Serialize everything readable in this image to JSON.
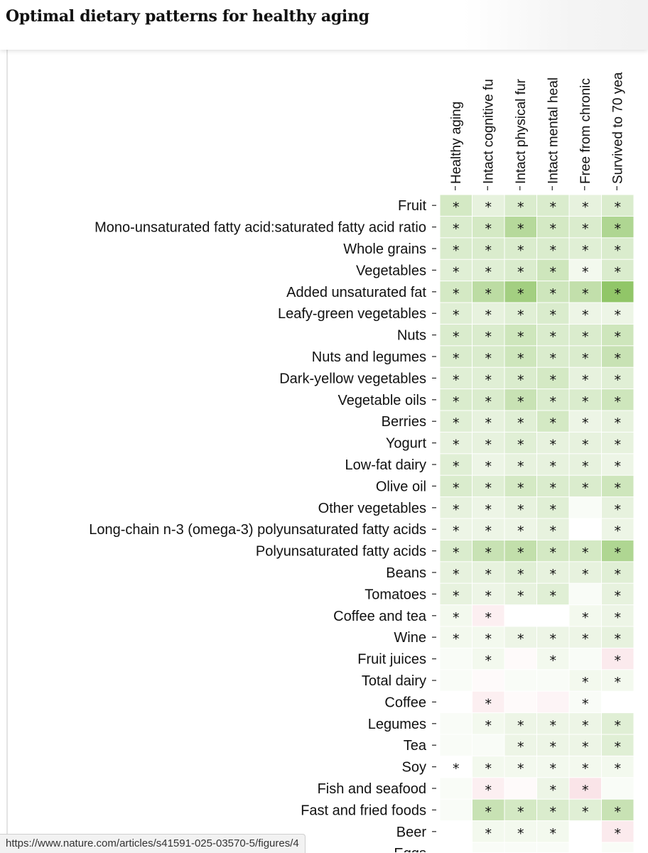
{
  "page": {
    "title": "Optimal dietary patterns for healthy aging",
    "status_url": "https://www.nature.com/articles/s41591-025-03570-5/figures/4"
  },
  "colors": {
    "positive": "#6fb43a",
    "negative": "#e8899a",
    "neutral": "#ffffff",
    "star": "#111111"
  },
  "chart_data": {
    "type": "heatmap",
    "title": "Optimal dietary patterns for healthy aging",
    "columns": [
      "Healthy aging",
      "Intact cognitive fu",
      "Intact physical fur",
      "Intact mental heal",
      "Free from chronic",
      "Survived to 70 yea"
    ],
    "note": "values are approximate association strengths (positive = green, negative = pink); null = not rendered",
    "rows": [
      {
        "label": "Fruit",
        "values": [
          0.35,
          0.2,
          0.3,
          0.3,
          0.2,
          0.3
        ],
        "stars": [
          1,
          1,
          1,
          1,
          1,
          1
        ]
      },
      {
        "label": "Mono-unsaturated fatty acid:saturated fatty acid ratio",
        "values": [
          0.3,
          0.35,
          0.6,
          0.35,
          0.3,
          0.65
        ],
        "stars": [
          1,
          1,
          1,
          1,
          1,
          1
        ]
      },
      {
        "label": "Whole grains",
        "values": [
          0.3,
          0.3,
          0.3,
          0.3,
          0.25,
          0.3
        ],
        "stars": [
          1,
          1,
          1,
          1,
          1,
          1
        ]
      },
      {
        "label": "Vegetables",
        "values": [
          0.25,
          0.25,
          0.3,
          0.4,
          0.1,
          0.3
        ],
        "stars": [
          1,
          1,
          1,
          1,
          1,
          1
        ]
      },
      {
        "label": "Added unsaturated fat",
        "values": [
          0.35,
          0.55,
          0.75,
          0.4,
          0.5,
          0.9
        ],
        "stars": [
          1,
          1,
          1,
          1,
          1,
          1
        ]
      },
      {
        "label": "Leafy-green vegetables",
        "values": [
          0.25,
          0.2,
          0.25,
          0.3,
          0.15,
          0.15
        ],
        "stars": [
          1,
          1,
          1,
          1,
          1,
          1
        ]
      },
      {
        "label": "Nuts",
        "values": [
          0.3,
          0.3,
          0.4,
          0.3,
          0.3,
          0.4
        ],
        "stars": [
          1,
          1,
          1,
          1,
          1,
          1
        ]
      },
      {
        "label": "Nuts and legumes",
        "values": [
          0.3,
          0.3,
          0.4,
          0.3,
          0.3,
          0.45
        ],
        "stars": [
          1,
          1,
          1,
          1,
          1,
          1
        ]
      },
      {
        "label": "Dark-yellow vegetables",
        "values": [
          0.25,
          0.25,
          0.3,
          0.35,
          0.2,
          0.25
        ],
        "stars": [
          1,
          1,
          1,
          1,
          1,
          1
        ]
      },
      {
        "label": "Vegetable oils",
        "values": [
          0.3,
          0.3,
          0.45,
          0.3,
          0.3,
          0.4
        ],
        "stars": [
          1,
          1,
          1,
          1,
          1,
          1
        ]
      },
      {
        "label": "Berries",
        "values": [
          0.25,
          0.2,
          0.25,
          0.35,
          0.15,
          0.2
        ],
        "stars": [
          1,
          1,
          1,
          1,
          1,
          1
        ]
      },
      {
        "label": "Yogurt",
        "values": [
          0.2,
          0.2,
          0.25,
          0.2,
          0.2,
          0.2
        ],
        "stars": [
          1,
          1,
          1,
          1,
          1,
          1
        ]
      },
      {
        "label": "Low-fat dairy",
        "values": [
          0.25,
          0.15,
          0.2,
          0.2,
          0.2,
          0.15
        ],
        "stars": [
          1,
          1,
          1,
          1,
          1,
          1
        ]
      },
      {
        "label": "Olive oil",
        "values": [
          0.3,
          0.25,
          0.35,
          0.3,
          0.3,
          0.4
        ],
        "stars": [
          1,
          1,
          1,
          1,
          1,
          1
        ]
      },
      {
        "label": "Other vegetables",
        "values": [
          0.2,
          0.15,
          0.2,
          0.25,
          0.05,
          0.2
        ],
        "stars": [
          1,
          1,
          1,
          1,
          0,
          1
        ]
      },
      {
        "label": "Long-chain n-3 (omega-3) polyunsaturated fatty acids",
        "values": [
          0.15,
          0.15,
          0.15,
          0.2,
          0.0,
          0.15
        ],
        "stars": [
          1,
          1,
          1,
          1,
          0,
          1
        ]
      },
      {
        "label": "Polyunsaturated fatty acids",
        "values": [
          0.3,
          0.45,
          0.5,
          0.35,
          0.35,
          0.65
        ],
        "stars": [
          1,
          1,
          1,
          1,
          1,
          1
        ]
      },
      {
        "label": "Beans",
        "values": [
          0.2,
          0.2,
          0.25,
          0.2,
          0.2,
          0.25
        ],
        "stars": [
          1,
          1,
          1,
          1,
          1,
          1
        ]
      },
      {
        "label": "Tomatoes",
        "values": [
          0.2,
          0.15,
          0.2,
          0.25,
          0.05,
          0.2
        ],
        "stars": [
          1,
          1,
          1,
          1,
          0,
          1
        ]
      },
      {
        "label": "Coffee and tea",
        "values": [
          0.1,
          -0.15,
          0.0,
          0.0,
          0.1,
          0.15
        ],
        "stars": [
          1,
          1,
          0,
          0,
          1,
          1
        ]
      },
      {
        "label": "Wine",
        "values": [
          0.1,
          0.1,
          0.15,
          0.15,
          0.15,
          0.2
        ],
        "stars": [
          1,
          1,
          1,
          1,
          1,
          1
        ]
      },
      {
        "label": "Fruit juices",
        "values": [
          0.05,
          0.1,
          -0.05,
          0.1,
          0.05,
          -0.2
        ],
        "stars": [
          0,
          1,
          0,
          1,
          0,
          1
        ]
      },
      {
        "label": "Total dairy",
        "values": [
          0.05,
          -0.05,
          0.05,
          0.05,
          0.1,
          0.1
        ],
        "stars": [
          0,
          0,
          0,
          0,
          1,
          1
        ]
      },
      {
        "label": "Coffee",
        "values": [
          0.0,
          -0.15,
          -0.05,
          -0.1,
          0.05,
          0.0
        ],
        "stars": [
          0,
          1,
          0,
          0,
          1,
          0
        ]
      },
      {
        "label": "Legumes",
        "values": [
          0.05,
          0.1,
          0.15,
          0.15,
          0.15,
          0.25
        ],
        "stars": [
          0,
          1,
          1,
          1,
          1,
          1
        ]
      },
      {
        "label": "Tea",
        "values": [
          0.05,
          0.05,
          0.15,
          0.15,
          0.15,
          0.25
        ],
        "stars": [
          0,
          0,
          1,
          1,
          1,
          1
        ]
      },
      {
        "label": "Soy",
        "values": [
          0.0,
          0.1,
          0.1,
          0.1,
          0.1,
          0.1
        ],
        "stars": [
          1,
          1,
          1,
          1,
          1,
          1
        ]
      },
      {
        "label": "Fish and seafood",
        "values": [
          0.05,
          -0.15,
          -0.05,
          0.15,
          -0.25,
          0.05
        ],
        "stars": [
          0,
          1,
          0,
          1,
          1,
          0
        ]
      },
      {
        "label": "Fast and fried foods",
        "values": [
          0.05,
          0.45,
          0.35,
          0.3,
          0.25,
          0.45
        ],
        "stars": [
          0,
          1,
          1,
          1,
          1,
          1
        ]
      },
      {
        "label": "Beer",
        "values": [
          0.0,
          0.1,
          0.1,
          0.1,
          0.0,
          -0.2
        ],
        "stars": [
          0,
          1,
          1,
          1,
          0,
          1
        ]
      },
      {
        "label": "Eggs",
        "values": [
          0.0,
          0.05,
          0.05,
          0.05,
          0.0,
          0.05
        ],
        "stars": [
          0,
          0,
          0,
          0,
          0,
          0
        ]
      }
    ]
  }
}
